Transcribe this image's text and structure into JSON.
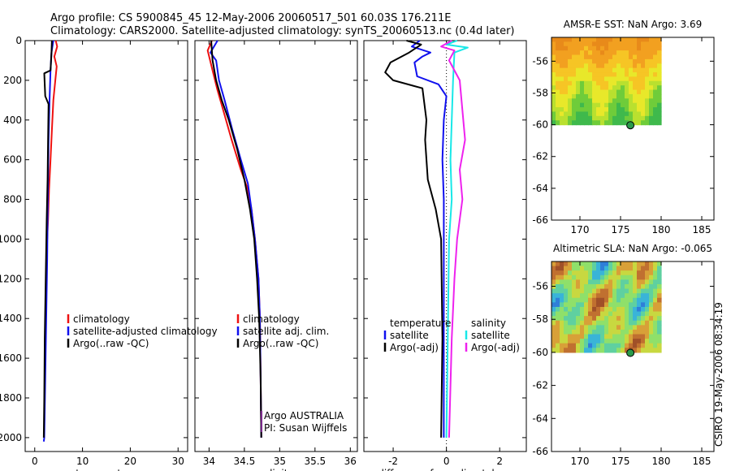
{
  "header": {
    "line1": "Argo profile: CS 5900845_45 12-May-2006 20060517_501 60.03S 176.211E",
    "line2": "Climatology: CARS2000. Satellite-adjusted climatology: synTS_20060513.nc (0.4d later)"
  },
  "credit": {
    "agency": "Argo AUSTRALIA",
    "pi": "PI: Susan Wijffels",
    "stamp": "CSIRO 19-May-2006 08:34:19"
  },
  "colors": {
    "climatology": "#ee1111",
    "satellite": "#1010ee",
    "argo": "#000000",
    "cyan": "#18e8e8",
    "magenta": "#ee22ee"
  },
  "chart_data": [
    {
      "id": "temperature",
      "type": "line",
      "xlabel": "temperature",
      "ylabel": "",
      "xlim": [
        -2,
        32
      ],
      "ylim": [
        2070,
        0
      ],
      "y_reversed": true,
      "xticks": [
        0,
        10,
        20,
        30
      ],
      "yticks": [
        0,
        200,
        400,
        600,
        800,
        1000,
        1200,
        1400,
        1600,
        1800,
        2000
      ],
      "legend": {
        "placement": "lower-center",
        "entries": [
          "climatology",
          "satellite-adjusted climatology",
          "Argo(..raw -QC)"
        ]
      },
      "series": [
        {
          "name": "climatology",
          "color_key": "climatology",
          "x": [
            4.4,
            4.7,
            4.1,
            4.6,
            4.3,
            3.9,
            3.6,
            3.3,
            3.0,
            2.8,
            2.6
          ],
          "y": [
            0,
            30,
            80,
            130,
            200,
            300,
            450,
            600,
            750,
            900,
            1000
          ]
        },
        {
          "name": "satellite-adjusted climatology",
          "color_key": "satellite",
          "x": [
            3.9,
            3.5,
            3.3,
            3.1,
            2.9,
            2.8,
            2.7,
            2.6,
            2.4,
            2.2,
            2.0,
            1.9
          ],
          "y": [
            0,
            60,
            150,
            300,
            500,
            700,
            900,
            1100,
            1400,
            1700,
            2000,
            2020
          ]
        },
        {
          "name": "Argo(..raw -QC)",
          "color_key": "argo",
          "x": [
            3.6,
            3.5,
            3.3,
            2.0,
            2.2,
            2.9,
            2.8,
            2.7,
            2.5,
            2.3,
            2.1,
            2.0,
            1.9
          ],
          "y": [
            0,
            60,
            150,
            165,
            280,
            320,
            500,
            700,
            900,
            1200,
            1500,
            1800,
            2000
          ]
        }
      ]
    },
    {
      "id": "salinity",
      "type": "line",
      "xlabel": "salinity",
      "ylabel": "",
      "xlim": [
        33.8,
        36.1
      ],
      "ylim": [
        2070,
        0
      ],
      "y_reversed": true,
      "xticks": [
        34,
        34.5,
        35,
        35.5,
        36
      ],
      "legend": {
        "placement": "lower-center",
        "entries": [
          "climatology",
          "satellite adj. clim.",
          "Argo(..raw -QC)"
        ]
      },
      "series": [
        {
          "name": "climatology",
          "color_key": "climatology",
          "x": [
            34.04,
            33.98,
            34.05,
            34.12,
            34.2,
            34.32,
            34.45,
            34.55,
            34.6,
            34.65,
            34.7,
            34.72,
            34.73,
            34.74
          ],
          "y": [
            0,
            50,
            150,
            250,
            350,
            500,
            650,
            750,
            850,
            1000,
            1200,
            1400,
            1700,
            2000
          ]
        },
        {
          "name": "satellite adj. clim.",
          "color_key": "satellite",
          "x": [
            34.12,
            34.02,
            34.1,
            34.14,
            34.22,
            34.33,
            34.45,
            34.55,
            34.6,
            34.65,
            34.7,
            34.72,
            34.73,
            34.74
          ],
          "y": [
            0,
            60,
            100,
            200,
            300,
            450,
            600,
            720,
            850,
            1000,
            1200,
            1400,
            1700,
            2000
          ]
        },
        {
          "name": "Argo(..raw -QC)",
          "color_key": "argo",
          "x": [
            34.03,
            34.05,
            34.1,
            34.18,
            34.28,
            34.4,
            34.5,
            34.58,
            34.64,
            34.68,
            34.71,
            34.73,
            34.74
          ],
          "y": [
            0,
            100,
            200,
            300,
            400,
            550,
            700,
            850,
            1000,
            1200,
            1400,
            1700,
            2000
          ]
        }
      ]
    },
    {
      "id": "difference",
      "type": "line",
      "xlabel": "difference from climatology",
      "ylabel": "",
      "xlim": [
        -3.1,
        3.0
      ],
      "ylim": [
        2070,
        0
      ],
      "y_reversed": true,
      "xticks": [
        -2,
        0,
        2
      ],
      "legend": {
        "placement": "lower-center",
        "columns": [
          {
            "heading": "temperature",
            "entries": [
              "satellite",
              "Argo(-adj)"
            ]
          },
          {
            "heading": "salinity",
            "entries": [
              "satellite",
              "Argo(-adj)"
            ]
          }
        ]
      },
      "series": [
        {
          "name": "temperature satellite",
          "color_key": "satellite",
          "x": [
            -1.0,
            -1.3,
            -0.6,
            -0.9,
            -1.2,
            -1.1,
            -0.3,
            0.0,
            -0.1,
            -0.15,
            -0.1,
            -0.1,
            -0.1,
            -0.1
          ],
          "y": [
            0,
            30,
            60,
            80,
            110,
            180,
            220,
            280,
            400,
            600,
            800,
            1000,
            1500,
            2000
          ]
        },
        {
          "name": "temperature Argo(-adj)",
          "color_key": "argo",
          "x": [
            -1.5,
            -0.95,
            -1.4,
            -2.1,
            -2.3,
            -2.0,
            -0.9,
            -0.75,
            -0.8,
            -0.7,
            -0.4,
            -0.2,
            -0.15,
            -0.2
          ],
          "y": [
            0,
            20,
            60,
            110,
            160,
            200,
            240,
            400,
            500,
            700,
            850,
            1000,
            1500,
            2000
          ]
        },
        {
          "name": "salinity satellite",
          "color_key": "cyan",
          "x": [
            0.4,
            0.0,
            0.8,
            0.3,
            0.25,
            0.2,
            0.15,
            0.2,
            0.1,
            0.05,
            0.0
          ],
          "y": [
            0,
            20,
            35,
            60,
            200,
            400,
            600,
            800,
            1000,
            1500,
            2000
          ]
        },
        {
          "name": "salinity Argo(-adj)",
          "color_key": "magenta",
          "x": [
            0.2,
            -0.2,
            0.3,
            0.1,
            0.5,
            0.6,
            0.7,
            0.5,
            0.6,
            0.4,
            0.3,
            0.2,
            0.1
          ],
          "y": [
            0,
            30,
            50,
            100,
            200,
            350,
            500,
            650,
            800,
            1000,
            1200,
            1500,
            2000
          ]
        }
      ]
    },
    {
      "id": "sst_map",
      "type": "heatmap",
      "title": "AMSR-E SST: NaN Argo: 3.69",
      "xlim": [
        166.5,
        186.5
      ],
      "ylim": [
        -66,
        -54.5
      ],
      "xticks": [
        170,
        175,
        180,
        185
      ],
      "yticks": [
        -56,
        -58,
        -60,
        -62,
        -64,
        -66
      ],
      "data_extent": {
        "lon": [
          166.5,
          180
        ],
        "lat": [
          -60,
          -54.5
        ]
      },
      "float_position": {
        "lon": 176.211,
        "lat": -60.03
      }
    },
    {
      "id": "sla_map",
      "type": "heatmap",
      "title": "Altimetric SLA: NaN Argo: -0.065",
      "xlim": [
        166.5,
        186.5
      ],
      "ylim": [
        -66,
        -54.5
      ],
      "xticks": [
        170,
        175,
        180,
        185
      ],
      "yticks": [
        -56,
        -58,
        -60,
        -62,
        -64,
        -66
      ],
      "data_extent": {
        "lon": [
          166.5,
          180
        ],
        "lat": [
          -60,
          -54.5
        ]
      },
      "float_position": {
        "lon": 176.211,
        "lat": -60.03
      }
    }
  ]
}
